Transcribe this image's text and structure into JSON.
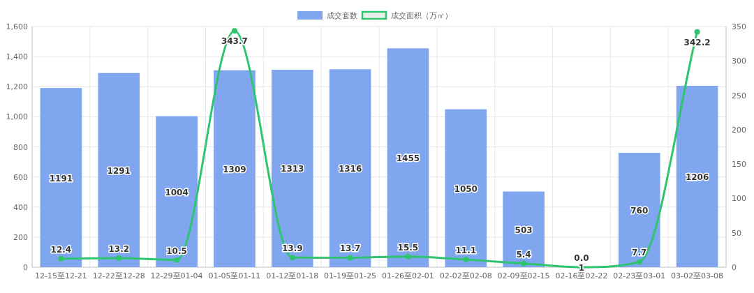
{
  "chart_data": {
    "type": "bar",
    "categories": [
      "12-15至12-21",
      "12-22至12-28",
      "12-29至01-04",
      "01-05至01-11",
      "01-12至01-18",
      "01-19至01-25",
      "01-26至02-01",
      "02-02至02-08",
      "02-09至02-15",
      "02-16至02-22",
      "02-23至03-01",
      "03-02至03-08"
    ],
    "series": [
      {
        "name": "成交套数",
        "color": "#7fa6ee",
        "values": [
          1191,
          1291,
          1004,
          1309,
          1313,
          1316,
          1455,
          1050,
          503,
          1,
          760,
          1206
        ],
        "value_labels": [
          "1191",
          "1291",
          "1004",
          "1309",
          "1313",
          "1316",
          "1455",
          "1050",
          "503",
          "1",
          "760",
          "1206"
        ]
      },
      {
        "name": "成交面积（万㎡）",
        "type": "line",
        "axis": "y2",
        "color": "#2fc46e",
        "marker": "circle",
        "values": [
          12.4,
          13.2,
          10.5,
          343.7,
          13.9,
          13.7,
          15.5,
          11.1,
          5.4,
          0.0,
          7.7,
          342.2
        ],
        "value_labels": [
          "12.4",
          "13.2",
          "10.5",
          "343.7",
          "13.9",
          "13.7",
          "15.5",
          "11.1",
          "5.4",
          "0.0",
          "7.7",
          "342.2"
        ]
      }
    ],
    "ylim": [
      0,
      1600
    ],
    "yticks": [
      0,
      200,
      400,
      600,
      800,
      {
        "value": 1000,
        "label": "1,000"
      },
      {
        "value": 1200,
        "label": "1,200"
      },
      {
        "value": 1400,
        "label": "1,400"
      },
      {
        "value": 1600,
        "label": "1,600"
      }
    ],
    "y2lim": [
      0,
      350
    ],
    "y2ticks": [
      0,
      50,
      100,
      150,
      200,
      250,
      300,
      350
    ],
    "grid": true,
    "legend": "top"
  }
}
